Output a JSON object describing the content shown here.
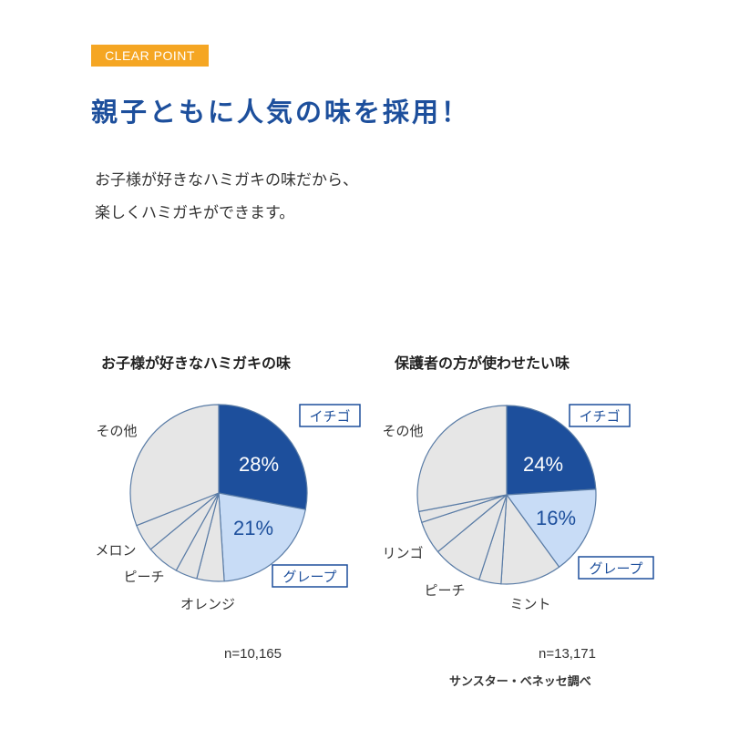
{
  "badge": "CLEAR POINT",
  "headline": "親子ともに人気の味を採用！",
  "lead": {
    "line1": "お子様が好きなハミガキの味だから、",
    "line2": "楽しくハミガキができます。"
  },
  "colors": {
    "accent_orange": "#f5a623",
    "brand_blue": "#1d4f9c",
    "light_blue": "#c8dcf6",
    "gray_slice": "#e6e6e6",
    "outline": "#5a7ca6"
  },
  "chart_data": [
    {
      "type": "pie",
      "title": "お子様が好きなハミガキの味",
      "n_label": "n=10,165",
      "slices": [
        {
          "label": "イチゴ",
          "value": 28,
          "value_label": "28%",
          "style": "dark",
          "boxed": true
        },
        {
          "label": "グレープ",
          "value": 21,
          "value_label": "21%",
          "style": "light",
          "boxed": true
        },
        {
          "label": "オレンジ",
          "value": 5,
          "value_label": "",
          "style": "gray",
          "boxed": false
        },
        {
          "label": "",
          "value": 4,
          "value_label": "",
          "style": "gray",
          "boxed": false
        },
        {
          "label": "ピーチ",
          "value": 6,
          "value_label": "",
          "style": "gray",
          "boxed": false
        },
        {
          "label": "メロン",
          "value": 5,
          "value_label": "",
          "style": "gray",
          "boxed": false
        },
        {
          "label": "その他",
          "value": 31,
          "value_label": "",
          "style": "gray",
          "boxed": false
        }
      ]
    },
    {
      "type": "pie",
      "title": "保護者の方が使わせたい味",
      "n_label": "n=13,171",
      "source": "サンスター・ベネッセ調べ",
      "slices": [
        {
          "label": "イチゴ",
          "value": 24,
          "value_label": "24%",
          "style": "dark",
          "boxed": true
        },
        {
          "label": "グレープ",
          "value": 16,
          "value_label": "16%",
          "style": "light",
          "boxed": true
        },
        {
          "label": "ミント",
          "value": 11,
          "value_label": "",
          "style": "gray",
          "boxed": false
        },
        {
          "label": "",
          "value": 4,
          "value_label": "",
          "style": "gray",
          "boxed": false
        },
        {
          "label": "ピーチ",
          "value": 9,
          "value_label": "",
          "style": "gray",
          "boxed": false
        },
        {
          "label": "リンゴ",
          "value": 6,
          "value_label": "",
          "style": "gray",
          "boxed": false
        },
        {
          "label": "",
          "value": 2,
          "value_label": "",
          "style": "gray",
          "boxed": false
        },
        {
          "label": "その他",
          "value": 28,
          "value_label": "",
          "style": "gray",
          "boxed": false
        }
      ]
    }
  ]
}
